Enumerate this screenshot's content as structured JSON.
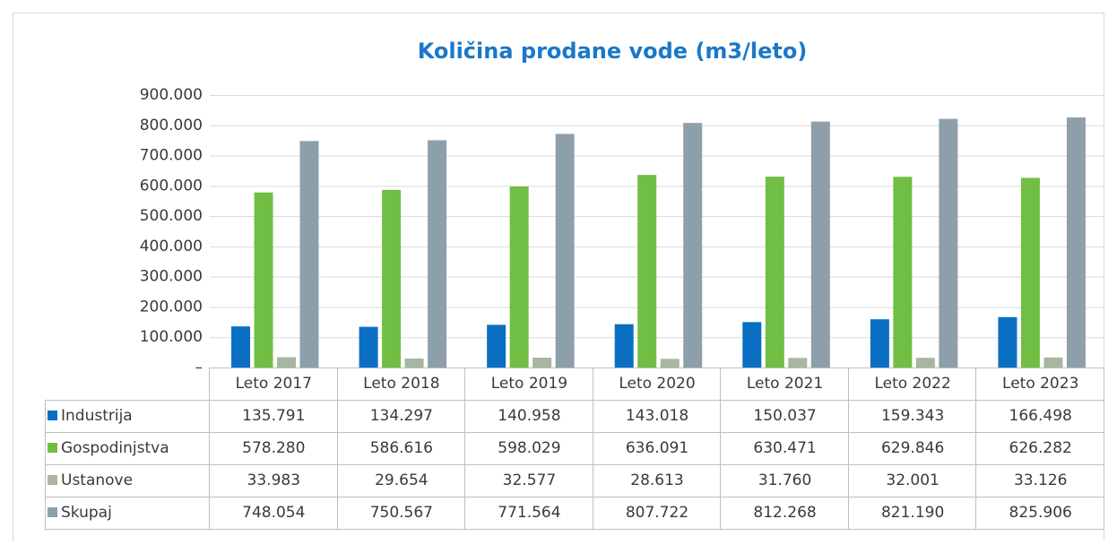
{
  "chart_data": {
    "type": "bar",
    "title": "Količina prodane vode (m3/leto)",
    "categories": [
      "Leto 2017",
      "Leto 2018",
      "Leto 2019",
      "Leto 2020",
      "Leto 2021",
      "Leto 2022",
      "Leto 2023"
    ],
    "series": [
      {
        "name": "Industrija",
        "color": "#0a6fc2",
        "values": [
          135791,
          134297,
          140958,
          143018,
          150037,
          159343,
          166498
        ],
        "value_labels": [
          "135.791",
          "134.297",
          "140.958",
          "143.018",
          "150.037",
          "159.343",
          "166.498"
        ]
      },
      {
        "name": "Gospodinjstva",
        "color": "#70bf44",
        "values": [
          578280,
          586616,
          598029,
          636091,
          630471,
          629846,
          626282
        ],
        "value_labels": [
          "578.280",
          "586.616",
          "598.029",
          "636.091",
          "630.471",
          "629.846",
          "626.282"
        ]
      },
      {
        "name": "Ustanove",
        "color": "#a7b6a0",
        "values": [
          33983,
          29654,
          32577,
          28613,
          31760,
          32001,
          33126
        ],
        "value_labels": [
          "33.983",
          "29.654",
          "32.577",
          "28.613",
          "31.760",
          "32.001",
          "33.126"
        ]
      },
      {
        "name": "Skupaj",
        "color": "#8e9fac",
        "values": [
          748054,
          750567,
          771564,
          807722,
          812268,
          821190,
          825906
        ],
        "value_labels": [
          "748.054",
          "750.567",
          "771.564",
          "807.722",
          "812.268",
          "821.190",
          "825.906"
        ]
      }
    ],
    "ylim": [
      0,
      900000
    ],
    "yticks": [
      {
        "value": 0,
        "label": "–"
      },
      {
        "value": 100000,
        "label": "100.000"
      },
      {
        "value": 200000,
        "label": "200.000"
      },
      {
        "value": 300000,
        "label": "300.000"
      },
      {
        "value": 400000,
        "label": "400.000"
      },
      {
        "value": 500000,
        "label": "500.000"
      },
      {
        "value": 600000,
        "label": "600.000"
      },
      {
        "value": 700000,
        "label": "700.000"
      },
      {
        "value": 800000,
        "label": "800.000"
      },
      {
        "value": 900000,
        "label": "900.000"
      }
    ],
    "grid": true
  }
}
